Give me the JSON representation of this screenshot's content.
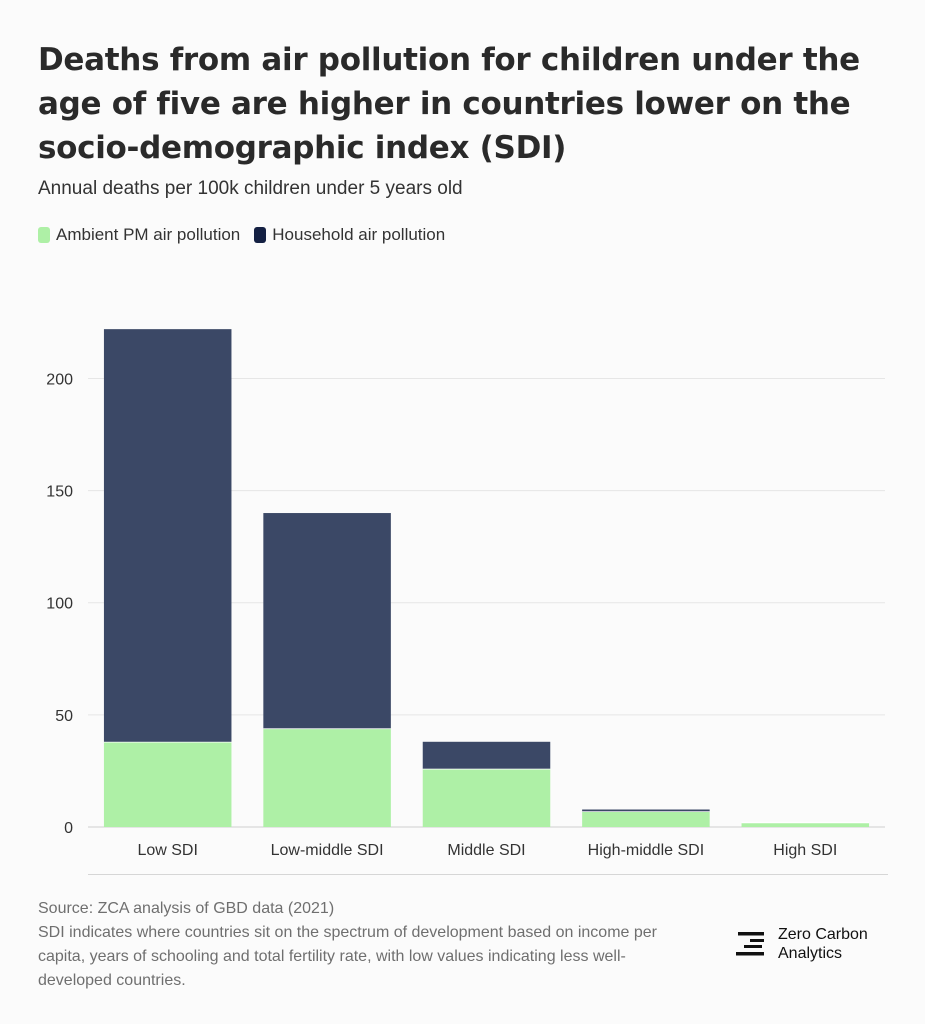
{
  "header": {
    "title": "Deaths from air pollution for children under the age of five are higher in countries lower on the socio-demographic index (SDI)",
    "subtitle": "Annual deaths per 100k children under 5 years old"
  },
  "legend": {
    "ambient_label": "Ambient PM air pollution",
    "household_label": "Household air pollution"
  },
  "colors": {
    "ambient": "#aef0a6",
    "household": "#3b4866",
    "household_legend": "#142043",
    "grid": "#e6e6e6"
  },
  "chart_data": {
    "type": "bar",
    "stacked": true,
    "title": "Deaths from air pollution for children under the age of five are higher in countries lower on the socio-demographic index (SDI)",
    "ylabel": "Annual deaths per 100k children under 5 years old",
    "xlabel": "",
    "categories": [
      "Low SDI",
      "Low-middle SDI",
      "Middle SDI",
      "High-middle SDI",
      "High SDI"
    ],
    "series": [
      {
        "name": "Ambient PM air pollution",
        "values": [
          38,
          44,
          26,
          7,
          2
        ]
      },
      {
        "name": "Household air pollution",
        "values": [
          184,
          96,
          12,
          0.8,
          0
        ]
      }
    ],
    "yticks": [
      0,
      50,
      100,
      150,
      200
    ],
    "ylim": [
      0,
      235
    ],
    "grid": true
  },
  "footer": {
    "source": "Source: ZCA analysis of GBD data (2021)",
    "note": "SDI indicates where countries sit on the spectrum of development based on income per capita, years of schooling and total fertility rate, with low values indicating less well-developed countries.",
    "brand_line1": "Zero Carbon",
    "brand_line2": "Analytics"
  }
}
